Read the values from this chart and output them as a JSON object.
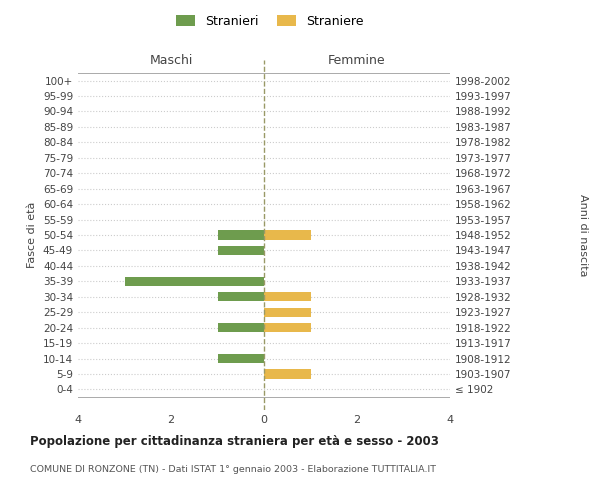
{
  "age_groups": [
    "100+",
    "95-99",
    "90-94",
    "85-89",
    "80-84",
    "75-79",
    "70-74",
    "65-69",
    "60-64",
    "55-59",
    "50-54",
    "45-49",
    "40-44",
    "35-39",
    "30-34",
    "25-29",
    "20-24",
    "15-19",
    "10-14",
    "5-9",
    "0-4"
  ],
  "birth_years": [
    "≤ 1902",
    "1903-1907",
    "1908-1912",
    "1913-1917",
    "1918-1922",
    "1923-1927",
    "1928-1932",
    "1933-1937",
    "1938-1942",
    "1943-1947",
    "1948-1952",
    "1953-1957",
    "1958-1962",
    "1963-1967",
    "1968-1972",
    "1973-1977",
    "1978-1982",
    "1983-1987",
    "1988-1992",
    "1993-1997",
    "1998-2002"
  ],
  "maschi_stranieri": [
    0,
    0,
    0,
    0,
    0,
    0,
    0,
    0,
    0,
    0,
    1,
    1,
    0,
    3,
    1,
    0,
    1,
    0,
    1,
    0,
    0
  ],
  "femmine_straniere": [
    0,
    0,
    0,
    0,
    0,
    0,
    0,
    0,
    0,
    0,
    1,
    0,
    0,
    0,
    1,
    1,
    1,
    0,
    0,
    1,
    0
  ],
  "color_maschi": "#6e9c4e",
  "color_femmine": "#e8b84b",
  "xlim": 4,
  "title": "Popolazione per cittadinanza straniera per età e sesso - 2003",
  "subtitle": "COMUNE DI RONZONE (TN) - Dati ISTAT 1° gennaio 2003 - Elaborazione TUTTITALIA.IT",
  "ylabel_left": "Fasce di età",
  "ylabel_right": "Anni di nascita",
  "xlabel_maschi": "Maschi",
  "xlabel_femmine": "Femmine",
  "legend_maschi": "Stranieri",
  "legend_femmine": "Straniere",
  "background_color": "#ffffff",
  "grid_color": "#cccccc"
}
